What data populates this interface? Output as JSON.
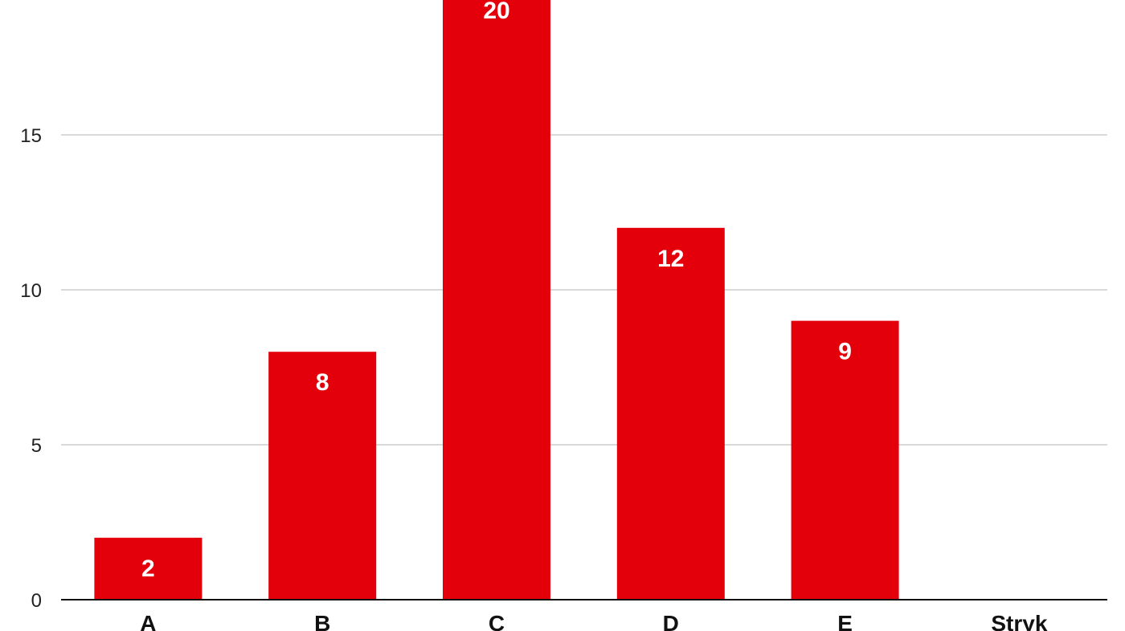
{
  "chart_data": {
    "type": "bar",
    "categories": [
      "A",
      "B",
      "C",
      "D",
      "E",
      "Stryk"
    ],
    "values": [
      2,
      8,
      20,
      12,
      9,
      0
    ],
    "data_labels": [
      "2",
      "8",
      "20",
      "12",
      "9",
      ""
    ],
    "yticks": [
      0,
      5,
      10,
      15
    ],
    "ytick_labels": [
      "0",
      "5",
      "10",
      "15"
    ],
    "ylim": [
      0,
      20
    ],
    "grid": true,
    "legend": "none",
    "bar_color": "#e3000b"
  }
}
